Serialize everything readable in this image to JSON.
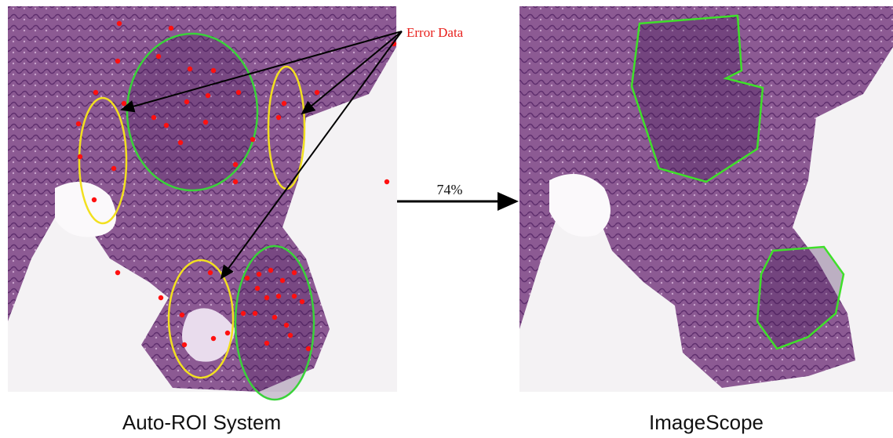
{
  "annotation": {
    "label": "Error Data"
  },
  "arrow": {
    "label": "74%"
  },
  "panels": [
    {
      "caption": "Auto-ROI System"
    },
    {
      "caption": "ImageScope"
    }
  ]
}
